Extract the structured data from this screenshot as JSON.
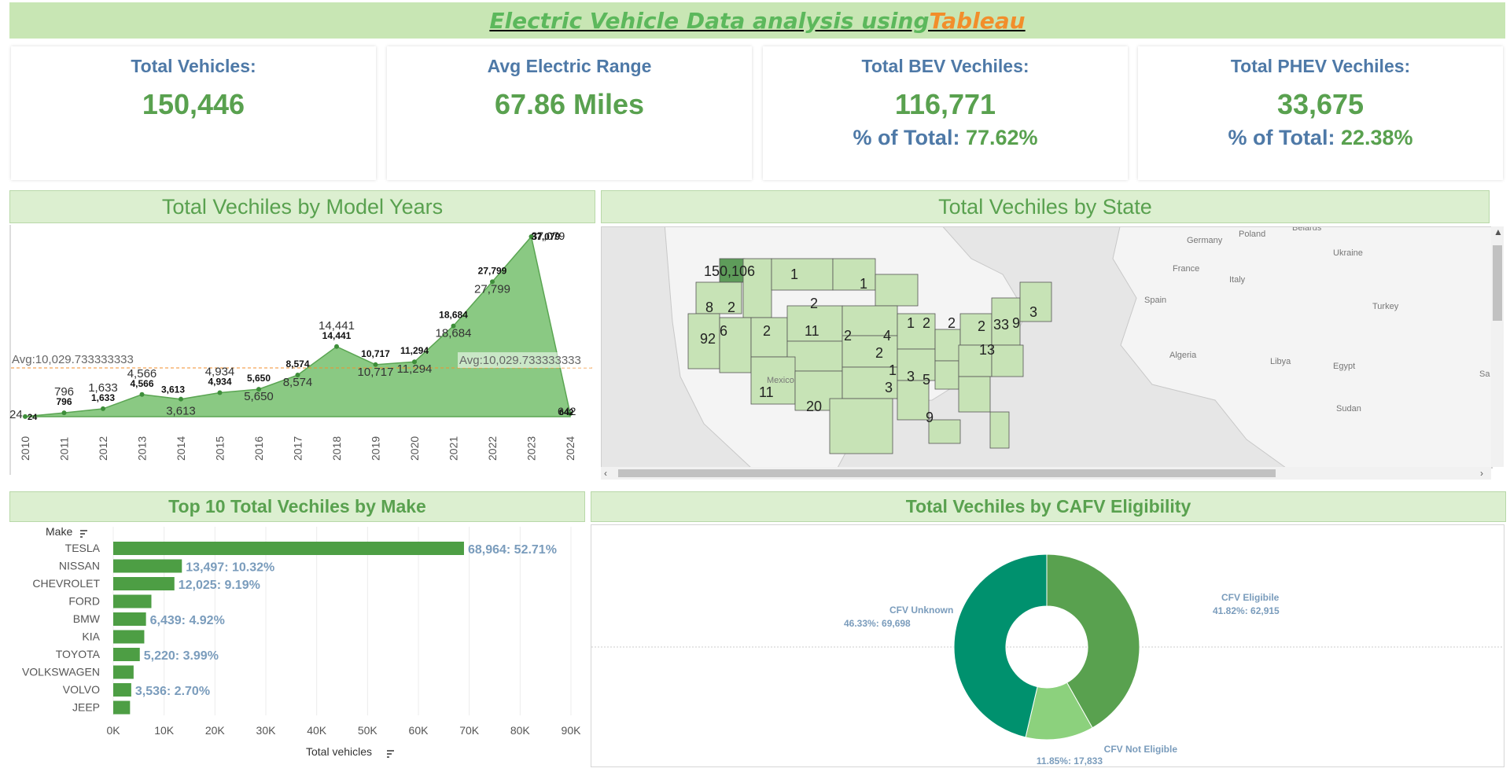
{
  "title": {
    "part1": "Electric Vehicle Data analysis using ",
    "part2": "Tableau"
  },
  "kpis": [
    {
      "label": "Total Vehicles:",
      "value": "150,446"
    },
    {
      "label": "Avg Electric Range",
      "value": "67.86 Miles"
    },
    {
      "label": "Total BEV Vechiles:",
      "value": "116,771",
      "sub_label": "% of Total: ",
      "sub_value": "77.62%"
    },
    {
      "label": "Total PHEV Vechiles:",
      "value": "33,675",
      "sub_label": "% of Total: ",
      "sub_value": "22.38%"
    }
  ],
  "colors": {
    "banner_bg": "#c8e6b4",
    "header_bg": "#dcefd0",
    "green": "#59a14f",
    "dark_green": "#00916e",
    "light_green": "#8cd17d",
    "blue": "#4e79a7",
    "orange": "#f28e2b",
    "area_fill": "#6dbb64",
    "washington": "#5e9c5a",
    "state_fill": "#c7e3b6"
  },
  "sections": {
    "model_years": "Total Vechiles by Model Years",
    "by_state": "Total Vechiles by State",
    "by_make": "Top  10 Total Vechiles by Make",
    "cafv": "Total Vechiles by CAFV Eligibility"
  },
  "chart_data": [
    {
      "type": "area",
      "title": "Total Vechiles by Model Years",
      "x": [
        "2010",
        "2011",
        "2012",
        "2013",
        "2014",
        "2015",
        "2016",
        "2017",
        "2018",
        "2019",
        "2020",
        "2021",
        "2022",
        "2023",
        "2024"
      ],
      "series": [
        {
          "values": [
            24,
            796,
            1633,
            4566,
            3613,
            4934,
            5650,
            8574,
            14441,
            10717,
            11294,
            18684,
            27799,
            37079,
            642
          ]
        }
      ],
      "reference_line": {
        "label": "Avg:10,029.733333333",
        "value": 10029.733333333
      },
      "overlap_label_2023": "37,079",
      "overlap_label_2024": "642",
      "ylim": [
        0,
        37079
      ]
    },
    {
      "type": "map",
      "title": "Total Vechiles by State",
      "labels": [
        "150,106",
        "1",
        "8",
        "2",
        "1",
        "2",
        "6",
        "2",
        "11",
        "2",
        "4",
        "1",
        "2",
        "2",
        "2",
        "33",
        "9",
        "3",
        "92",
        "11",
        "13",
        "2",
        "20",
        "1",
        "3",
        "3",
        "5",
        "9"
      ],
      "place_names": [
        "Poland",
        "Belarus",
        "Germany",
        "Ukraine",
        "France",
        "Italy",
        "Spain",
        "Turkey",
        "Algeria",
        "Libya",
        "Egypt",
        "Sudan",
        "Mexico",
        "Sa"
      ]
    },
    {
      "type": "bar",
      "title": "Top  10 Total Vechiles by Make",
      "axis_header": "Make",
      "categories": [
        "TESLA",
        "NISSAN",
        "CHEVROLET",
        "FORD",
        "BMW",
        "KIA",
        "TOYOTA",
        "VOLKSWAGEN",
        "VOLVO",
        "JEEP"
      ],
      "values": [
        68964,
        13497,
        12025,
        7500,
        6439,
        6100,
        5220,
        4000,
        3536,
        3300
      ],
      "labels": [
        "68,964: 52.71%",
        "13,497: 10.32%",
        "12,025: 9.19%",
        "",
        "6,439: 4.92%",
        "",
        "5,220: 3.99%",
        "",
        "3,536: 2.70%",
        ""
      ],
      "xlabel": "Total vehicles",
      "xticks": [
        "0K",
        "10K",
        "20K",
        "30K",
        "40K",
        "50K",
        "60K",
        "70K",
        "80K",
        "90K"
      ],
      "xlim": [
        0,
        90000
      ]
    },
    {
      "type": "pie",
      "title": "Total Vechiles by CAFV Eligibility",
      "slices": [
        {
          "name": "CFV Eligibile",
          "value": 62915,
          "label": "41.82%: 62,915",
          "color": "#59a14f"
        },
        {
          "name": "CFV Not Eligible",
          "value": 17833,
          "label": "11.85%: 17,833",
          "color": "#8cd17d"
        },
        {
          "name": "CFV Unknown",
          "value": 69698,
          "label": "46.33%: 69,698",
          "color": "#00916e"
        }
      ]
    }
  ]
}
